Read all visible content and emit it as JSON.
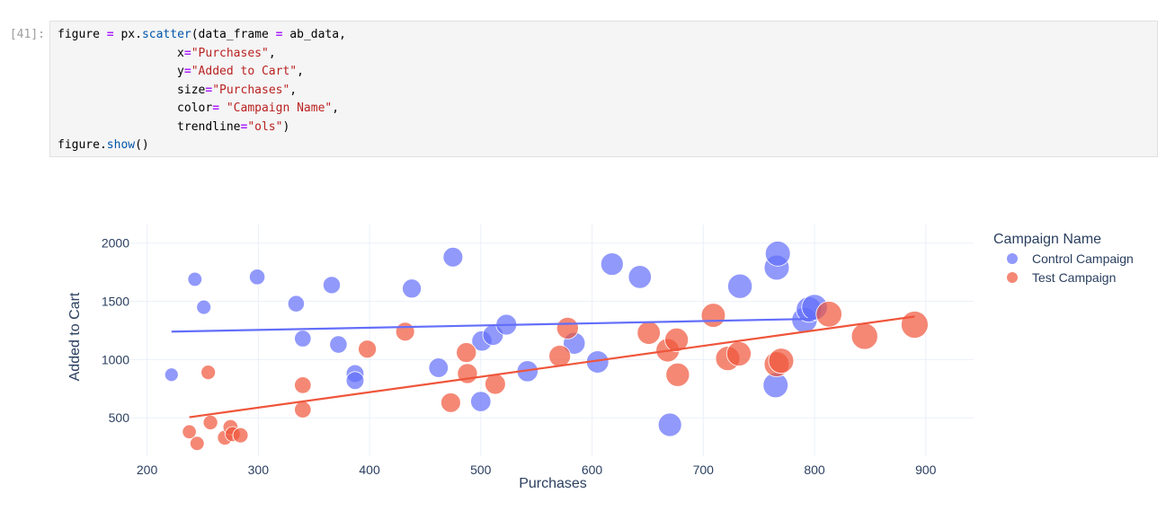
{
  "cell": {
    "prompt": "[41]:",
    "code_lines": [
      [
        {
          "t": "figure "
        },
        {
          "t": "=",
          "c": "op"
        },
        {
          "t": " px."
        },
        {
          "t": "scatter",
          "c": "fn"
        },
        {
          "t": "(data_frame "
        },
        {
          "t": "=",
          "c": "op"
        },
        {
          "t": " ab_data,"
        }
      ],
      [
        {
          "t": "                 x"
        },
        {
          "t": "=",
          "c": "op"
        },
        {
          "t": "\"Purchases\"",
          "c": "str"
        },
        {
          "t": ","
        }
      ],
      [
        {
          "t": "                 y"
        },
        {
          "t": "=",
          "c": "op"
        },
        {
          "t": "\"Added to Cart\"",
          "c": "str"
        },
        {
          "t": ","
        }
      ],
      [
        {
          "t": "                 size"
        },
        {
          "t": "=",
          "c": "op"
        },
        {
          "t": "\"Purchases\"",
          "c": "str"
        },
        {
          "t": ","
        }
      ],
      [
        {
          "t": "                 color"
        },
        {
          "t": "=",
          "c": "op"
        },
        {
          "t": " "
        },
        {
          "t": "\"Campaign Name\"",
          "c": "str"
        },
        {
          "t": ","
        }
      ],
      [
        {
          "t": "                 trendline"
        },
        {
          "t": "=",
          "c": "op"
        },
        {
          "t": "\"ols\"",
          "c": "str"
        },
        {
          "t": ")"
        }
      ],
      [
        {
          "t": "figure."
        },
        {
          "t": "show",
          "c": "fn"
        },
        {
          "t": "()"
        }
      ]
    ]
  },
  "chart_data": {
    "type": "scatter",
    "title": "",
    "xlabel": "Purchases",
    "ylabel": "Added to Cart",
    "xlim": [
      185,
      943
    ],
    "ylim": [
      170,
      2160
    ],
    "xticks": [
      200,
      300,
      400,
      500,
      600,
      700,
      800,
      900
    ],
    "yticks": [
      500,
      1000,
      1500,
      2000
    ],
    "grid": true,
    "legend": {
      "title": "Campaign Name",
      "placement": "right"
    },
    "size_encodes": "Purchases",
    "series": [
      {
        "name": "Control Campaign",
        "color": "#636efa",
        "points": [
          [
            222,
            870
          ],
          [
            243,
            1690
          ],
          [
            251,
            1450
          ],
          [
            299,
            1710
          ],
          [
            334,
            1480
          ],
          [
            340,
            1180
          ],
          [
            366,
            1640
          ],
          [
            372,
            1130
          ],
          [
            387,
            880
          ],
          [
            387,
            820
          ],
          [
            438,
            1610
          ],
          [
            462,
            930
          ],
          [
            475,
            1880
          ],
          [
            500,
            640
          ],
          [
            501,
            1160
          ],
          [
            511,
            1210
          ],
          [
            523,
            1300
          ],
          [
            542,
            900
          ],
          [
            584,
            1140
          ],
          [
            605,
            980
          ],
          [
            618,
            1820
          ],
          [
            643,
            1710
          ],
          [
            670,
            440
          ],
          [
            733,
            1630
          ],
          [
            765,
            780
          ],
          [
            766,
            1790
          ],
          [
            767,
            1910
          ],
          [
            791,
            1340
          ],
          [
            795,
            1430
          ],
          [
            800,
            1450
          ]
        ],
        "trendline": [
          [
            222,
            1240
          ],
          [
            800,
            1350
          ]
        ]
      },
      {
        "name": "Test Campaign",
        "color": "#ef553b",
        "points": [
          [
            238,
            380
          ],
          [
            245,
            280
          ],
          [
            255,
            890
          ],
          [
            257,
            460
          ],
          [
            270,
            330
          ],
          [
            275,
            420
          ],
          [
            277,
            360
          ],
          [
            284,
            350
          ],
          [
            340,
            780
          ],
          [
            340,
            570
          ],
          [
            398,
            1090
          ],
          [
            432,
            1240
          ],
          [
            473,
            630
          ],
          [
            487,
            1060
          ],
          [
            488,
            880
          ],
          [
            513,
            790
          ],
          [
            571,
            1030
          ],
          [
            578,
            1270
          ],
          [
            651,
            1230
          ],
          [
            668,
            1080
          ],
          [
            676,
            1170
          ],
          [
            677,
            870
          ],
          [
            709,
            1380
          ],
          [
            722,
            1010
          ],
          [
            732,
            1050
          ],
          [
            766,
            960
          ],
          [
            770,
            990
          ],
          [
            813,
            1390
          ],
          [
            845,
            1200
          ],
          [
            890,
            1300
          ]
        ],
        "trendline": [
          [
            238,
            505
          ],
          [
            890,
            1370
          ]
        ]
      }
    ]
  }
}
